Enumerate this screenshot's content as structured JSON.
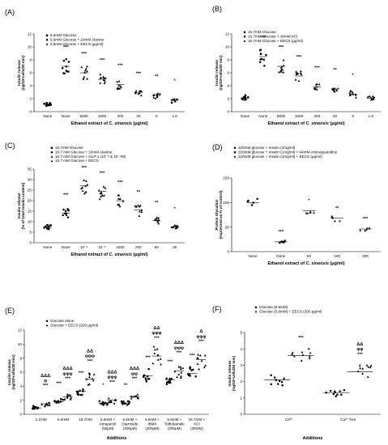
{
  "chart_data": [
    {
      "id": "A",
      "panel_label": "(A)",
      "type": "scatter",
      "ylabel": [
        "Insulin release",
        "(ng/10⁶cells/20 min)"
      ],
      "xlabel": "Ethanol extract of C. sinensis (μg/ml)",
      "ylim": [
        0,
        12
      ],
      "yticks": [
        "0",
        "2",
        "4",
        "6",
        "8",
        "10",
        "12"
      ],
      "legend": [
        "5.6mM Glucose",
        "5.6mM Glucose + 10mM Alanine",
        "5.6mM Glucose + EECS (μg/ml)"
      ],
      "categories": [
        "None",
        "None",
        "5000",
        "1000",
        "200",
        "40",
        "8",
        "1.6"
      ],
      "means": [
        1.1,
        7.0,
        6.0,
        5.0,
        4.2,
        2.9,
        2.5,
        1.8
      ],
      "markers": [
        "square",
        "circle",
        "triangle",
        "triangle",
        "triangle",
        "triangle",
        "triangle",
        "triangle"
      ],
      "annotations": [
        "",
        "***",
        "***",
        "***",
        "***",
        "***",
        "**",
        "*"
      ]
    },
    {
      "id": "B",
      "panel_label": "(B)",
      "type": "scatter",
      "ylabel": [
        "Insulin release",
        "(ng/10⁶cells/20 min)"
      ],
      "xlabel": "Ethanol extract of C. sinensis (μg/ml)",
      "ylim": [
        0,
        12
      ],
      "yticks": [
        "0",
        "2",
        "4",
        "6",
        "8",
        "10",
        "12"
      ],
      "legend": [
        "16.7mM Glucose",
        "16.7mM Glucose + 30mM KCl",
        "16.7mM Glucose + EECS (μg/ml)"
      ],
      "categories": [
        "None",
        "None",
        "5000",
        "1000",
        "200",
        "40",
        "8",
        "1.6"
      ],
      "means": [
        2.1,
        8.5,
        7.0,
        5.5,
        3.8,
        3.5,
        2.7,
        2.1
      ],
      "markers": [
        "square",
        "circle",
        "triangle",
        "triangle",
        "triangle",
        "triangle",
        "triangle",
        "triangle"
      ],
      "annotations": [
        "",
        "***",
        "***",
        "***",
        "***",
        "**",
        "*",
        ""
      ]
    },
    {
      "id": "C",
      "panel_label": "(C)",
      "type": "scatter",
      "ylabel": [
        "Insulin release",
        "(% of total insulin content)"
      ],
      "xlabel": "Ethanol extract of C. sinensis (μg/ml)",
      "ylim": [
        0,
        35
      ],
      "yticks": [
        "0",
        "5",
        "10",
        "15",
        "20",
        "25",
        "30",
        "35"
      ],
      "legend": [
        "16.7mM Glucose",
        "16.7 mM Glucose + 10mM Alanine",
        "16.7 mM Glucose + GLP-1 (10⁻⁶ & 10⁻⁸M)",
        "16.7 mM Glucose + EECS"
      ],
      "categories": [
        "None",
        "None",
        "10⁻⁶",
        "10⁻⁸",
        "1000",
        "200",
        "50",
        "25"
      ],
      "means": [
        7.2,
        14.0,
        27.0,
        24.5,
        20.0,
        15.5,
        10.5,
        7.5
      ],
      "markers": [
        "square",
        "circle",
        "triangle",
        "triangle",
        "triangle",
        "triangle",
        "triangle",
        "triangle"
      ],
      "annotations": [
        "",
        "***",
        "***",
        "***",
        "***",
        "**",
        "**",
        "*"
      ]
    },
    {
      "id": "D",
      "panel_label": "(D)",
      "type": "scatter",
      "ylabel": [
        "Protein Glycation",
        "(expressed as % of control)"
      ],
      "xlabel": "Ethanol extract of C. sinensis (μg/ml)",
      "ylim": [
        0,
        150
      ],
      "yticks": [
        "0",
        "50",
        "100",
        "150"
      ],
      "legend": [
        "220mM glucose + Insulin (1mg/ml)",
        "220mM glucose + Insulin (1mg/ml) + 44mM Aminoguanidine",
        "220mM glucose + Insulin (1mg/ml) + EECS (μg/ml)"
      ],
      "categories": [
        "None",
        "None",
        "50",
        "100",
        "200"
      ],
      "means": [
        100,
        20,
        83,
        68,
        46
      ],
      "markers": [
        "circle",
        "square",
        "triangle",
        "triangle",
        "triangle"
      ],
      "annotations": [
        "",
        "***",
        "*",
        "**",
        "***"
      ]
    },
    {
      "id": "E",
      "panel_label": "(E)",
      "type": "scatter",
      "ylabel": [
        "Insulin release",
        "(ng/10⁶cells/20 min)"
      ],
      "xlabel": "Additions",
      "ylim": [
        0,
        12
      ],
      "yticks": [
        "0",
        "2",
        "4",
        "6",
        "8",
        "10",
        "12"
      ],
      "legend": [
        "Glucose alone",
        "Glucose + EECS (200 μg/ml)"
      ],
      "categories": [
        "1.1mM",
        "5.6mM",
        "16.7mM",
        "5.6mM +\nVerapamil\n(50μM)",
        "5.6mM +\nDiazoxide\n(300μM)",
        "5.6mM +\nIBMX\n(200μM)",
        "5.6mM +\nTolbutamide\n(200μM)",
        "16.7mM +\nKCl\n(30mM)"
      ],
      "series": [
        {
          "name": "Glucose alone",
          "values": [
            0.9,
            1.8,
            3.3,
            1.6,
            1.6,
            5.5,
            4.9,
            5.8
          ]
        },
        {
          "name": "Glucose + EECS (200 μg/ml)",
          "values": [
            1.5,
            2.5,
            5.0,
            2.0,
            2.5,
            8.3,
            6.2,
            7.8
          ]
        }
      ],
      "annotations": [
        {
          "g": "",
          "e": [
            "ΔΔΔ",
            "φ",
            "***"
          ]
        },
        {
          "g": "***",
          "e": [
            "ΔΔΔ",
            "φφφ",
            "***"
          ]
        },
        {
          "g": "***",
          "e": [
            "ΔΔ",
            "φφφ",
            "***"
          ]
        },
        {
          "g": "*",
          "e": [
            "ΔΔΔ",
            "φφφ",
            "***"
          ]
        },
        {
          "g": "**",
          "e": [
            "ΔΔΔ",
            "φφ",
            "***"
          ]
        },
        {
          "g": "***",
          "e": [
            "ΔΔ",
            "φφφ",
            "***"
          ]
        },
        {
          "g": "***",
          "e": [
            "ΔΔΔ",
            "φφφ",
            "***"
          ]
        },
        {
          "g": "***",
          "e": [
            "Δ",
            "φφφ",
            "***"
          ]
        }
      ]
    },
    {
      "id": "F",
      "panel_label": "(F)",
      "type": "scatter",
      "ylabel": [
        "Insulin release",
        "(ng/10⁶cells/20 min)"
      ],
      "xlabel": "Additions",
      "ylim": [
        0,
        5
      ],
      "yticks": [
        "0",
        "1",
        "2",
        "3",
        "4",
        "5"
      ],
      "legend": [
        "Glucose (5.6mM)",
        "Glucose (5.6mM) + EECS (200 μg/ml)"
      ],
      "categories": [
        "Ca²⁺",
        "Ca²⁺ free"
      ],
      "series": [
        {
          "name": "Glucose (5.6mM)",
          "values": [
            2.1,
            1.3
          ]
        },
        {
          "name": "Glucose (5.6mM) + EECS (200 μg/ml)",
          "values": [
            3.6,
            2.6
          ]
        }
      ],
      "annotations": [
        {
          "g": "",
          "e": [
            "***"
          ]
        },
        {
          "g": "",
          "e": [
            "ΔΔ",
            "φφ",
            "***"
          ]
        }
      ]
    }
  ]
}
